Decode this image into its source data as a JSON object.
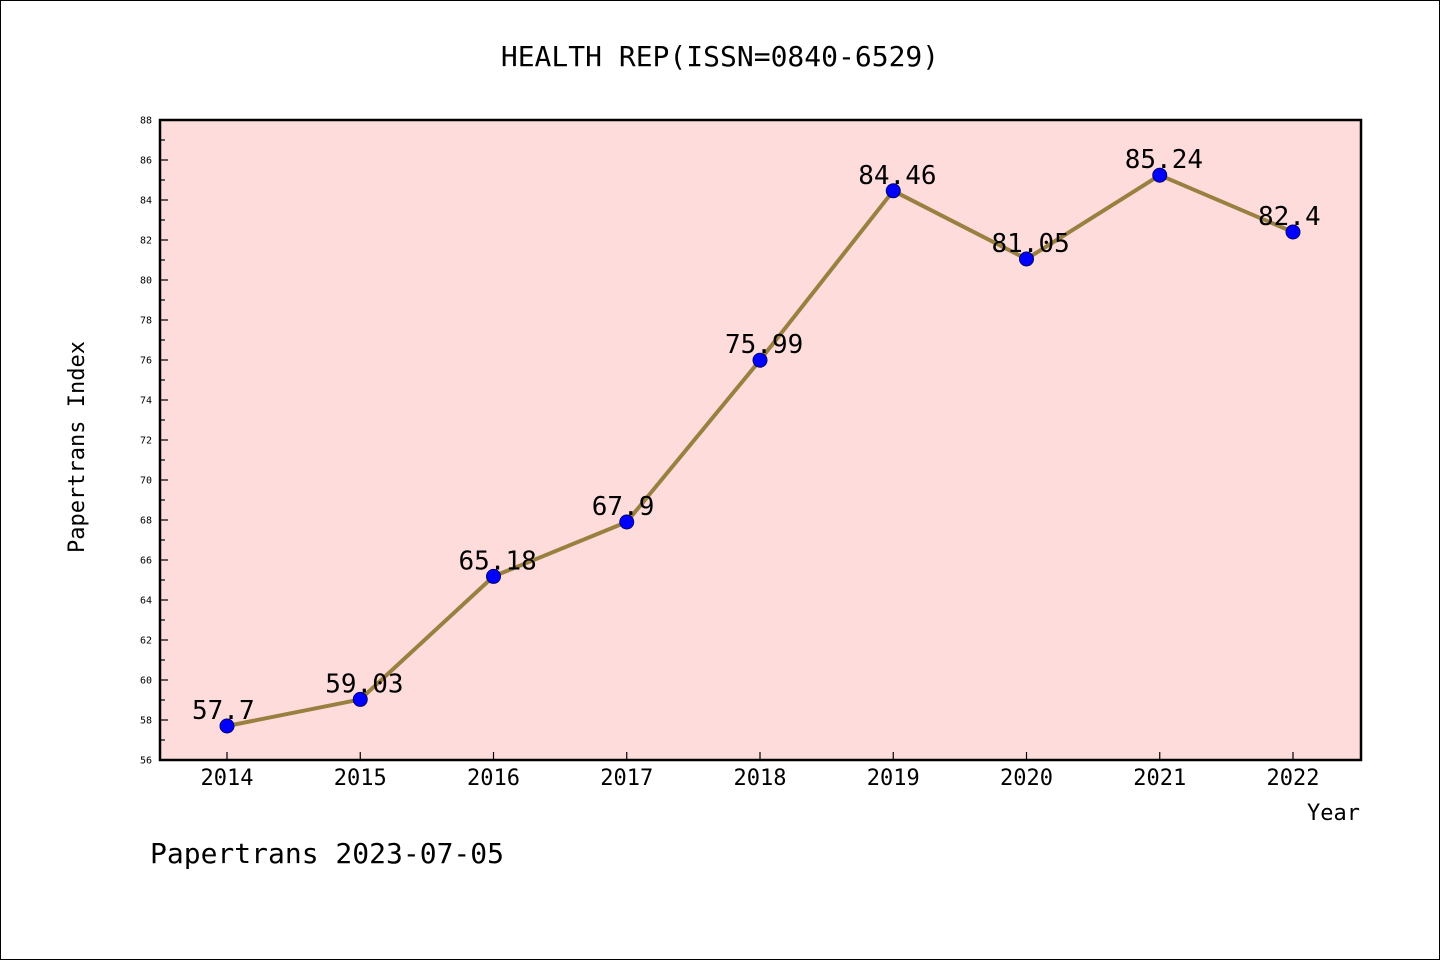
{
  "chart_data": {
    "type": "line",
    "title": "HEALTH REP(ISSN=0840-6529)",
    "xlabel": "Year",
    "ylabel": "Papertrans Index",
    "x": [
      "2014",
      "2015",
      "2016",
      "2017",
      "2018",
      "2019",
      "2020",
      "2021",
      "2022"
    ],
    "values": [
      57.7,
      59.03,
      65.18,
      67.9,
      75.99,
      84.46,
      81.05,
      85.24,
      82.4
    ],
    "data_labels": [
      "57.7",
      "59.03",
      "65.18",
      "67.9",
      "75.99",
      "84.46",
      "81.05",
      "85.24",
      "82.4"
    ],
    "ylim": [
      56,
      88
    ],
    "yticks": [
      "56",
      "58",
      "60",
      "62",
      "64",
      "66",
      "68",
      "70",
      "72",
      "74",
      "76",
      "78",
      "80",
      "82",
      "84",
      "86",
      "88"
    ],
    "line_color": "#9a8040",
    "marker_color": "#0000ff",
    "plot_background": "#ffdcdc",
    "grid": false,
    "legend": "none"
  },
  "footer": {
    "text": "Papertrans 2023-07-05"
  }
}
